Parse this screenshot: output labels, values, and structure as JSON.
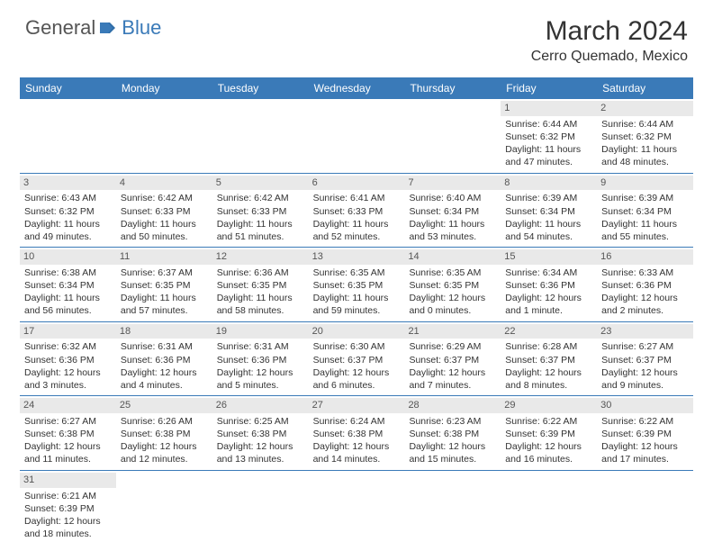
{
  "logo": {
    "text1": "General",
    "text2": "Blue"
  },
  "title": "March 2024",
  "location": "Cerro Quemado, Mexico",
  "colors": {
    "header_bg": "#3a7ab8",
    "header_text": "#ffffff",
    "daynum_bg": "#e9e9e9",
    "border": "#3a7ab8",
    "text": "#333333"
  },
  "dayNames": [
    "Sunday",
    "Monday",
    "Tuesday",
    "Wednesday",
    "Thursday",
    "Friday",
    "Saturday"
  ],
  "weeks": [
    [
      {
        "empty": true
      },
      {
        "empty": true
      },
      {
        "empty": true
      },
      {
        "empty": true
      },
      {
        "empty": true
      },
      {
        "day": "1",
        "sunrise": "Sunrise: 6:44 AM",
        "sunset": "Sunset: 6:32 PM",
        "daylight1": "Daylight: 11 hours",
        "daylight2": "and 47 minutes."
      },
      {
        "day": "2",
        "sunrise": "Sunrise: 6:44 AM",
        "sunset": "Sunset: 6:32 PM",
        "daylight1": "Daylight: 11 hours",
        "daylight2": "and 48 minutes."
      }
    ],
    [
      {
        "day": "3",
        "sunrise": "Sunrise: 6:43 AM",
        "sunset": "Sunset: 6:32 PM",
        "daylight1": "Daylight: 11 hours",
        "daylight2": "and 49 minutes."
      },
      {
        "day": "4",
        "sunrise": "Sunrise: 6:42 AM",
        "sunset": "Sunset: 6:33 PM",
        "daylight1": "Daylight: 11 hours",
        "daylight2": "and 50 minutes."
      },
      {
        "day": "5",
        "sunrise": "Sunrise: 6:42 AM",
        "sunset": "Sunset: 6:33 PM",
        "daylight1": "Daylight: 11 hours",
        "daylight2": "and 51 minutes."
      },
      {
        "day": "6",
        "sunrise": "Sunrise: 6:41 AM",
        "sunset": "Sunset: 6:33 PM",
        "daylight1": "Daylight: 11 hours",
        "daylight2": "and 52 minutes."
      },
      {
        "day": "7",
        "sunrise": "Sunrise: 6:40 AM",
        "sunset": "Sunset: 6:34 PM",
        "daylight1": "Daylight: 11 hours",
        "daylight2": "and 53 minutes."
      },
      {
        "day": "8",
        "sunrise": "Sunrise: 6:39 AM",
        "sunset": "Sunset: 6:34 PM",
        "daylight1": "Daylight: 11 hours",
        "daylight2": "and 54 minutes."
      },
      {
        "day": "9",
        "sunrise": "Sunrise: 6:39 AM",
        "sunset": "Sunset: 6:34 PM",
        "daylight1": "Daylight: 11 hours",
        "daylight2": "and 55 minutes."
      }
    ],
    [
      {
        "day": "10",
        "sunrise": "Sunrise: 6:38 AM",
        "sunset": "Sunset: 6:34 PM",
        "daylight1": "Daylight: 11 hours",
        "daylight2": "and 56 minutes."
      },
      {
        "day": "11",
        "sunrise": "Sunrise: 6:37 AM",
        "sunset": "Sunset: 6:35 PM",
        "daylight1": "Daylight: 11 hours",
        "daylight2": "and 57 minutes."
      },
      {
        "day": "12",
        "sunrise": "Sunrise: 6:36 AM",
        "sunset": "Sunset: 6:35 PM",
        "daylight1": "Daylight: 11 hours",
        "daylight2": "and 58 minutes."
      },
      {
        "day": "13",
        "sunrise": "Sunrise: 6:35 AM",
        "sunset": "Sunset: 6:35 PM",
        "daylight1": "Daylight: 11 hours",
        "daylight2": "and 59 minutes."
      },
      {
        "day": "14",
        "sunrise": "Sunrise: 6:35 AM",
        "sunset": "Sunset: 6:35 PM",
        "daylight1": "Daylight: 12 hours",
        "daylight2": "and 0 minutes."
      },
      {
        "day": "15",
        "sunrise": "Sunrise: 6:34 AM",
        "sunset": "Sunset: 6:36 PM",
        "daylight1": "Daylight: 12 hours",
        "daylight2": "and 1 minute."
      },
      {
        "day": "16",
        "sunrise": "Sunrise: 6:33 AM",
        "sunset": "Sunset: 6:36 PM",
        "daylight1": "Daylight: 12 hours",
        "daylight2": "and 2 minutes."
      }
    ],
    [
      {
        "day": "17",
        "sunrise": "Sunrise: 6:32 AM",
        "sunset": "Sunset: 6:36 PM",
        "daylight1": "Daylight: 12 hours",
        "daylight2": "and 3 minutes."
      },
      {
        "day": "18",
        "sunrise": "Sunrise: 6:31 AM",
        "sunset": "Sunset: 6:36 PM",
        "daylight1": "Daylight: 12 hours",
        "daylight2": "and 4 minutes."
      },
      {
        "day": "19",
        "sunrise": "Sunrise: 6:31 AM",
        "sunset": "Sunset: 6:36 PM",
        "daylight1": "Daylight: 12 hours",
        "daylight2": "and 5 minutes."
      },
      {
        "day": "20",
        "sunrise": "Sunrise: 6:30 AM",
        "sunset": "Sunset: 6:37 PM",
        "daylight1": "Daylight: 12 hours",
        "daylight2": "and 6 minutes."
      },
      {
        "day": "21",
        "sunrise": "Sunrise: 6:29 AM",
        "sunset": "Sunset: 6:37 PM",
        "daylight1": "Daylight: 12 hours",
        "daylight2": "and 7 minutes."
      },
      {
        "day": "22",
        "sunrise": "Sunrise: 6:28 AM",
        "sunset": "Sunset: 6:37 PM",
        "daylight1": "Daylight: 12 hours",
        "daylight2": "and 8 minutes."
      },
      {
        "day": "23",
        "sunrise": "Sunrise: 6:27 AM",
        "sunset": "Sunset: 6:37 PM",
        "daylight1": "Daylight: 12 hours",
        "daylight2": "and 9 minutes."
      }
    ],
    [
      {
        "day": "24",
        "sunrise": "Sunrise: 6:27 AM",
        "sunset": "Sunset: 6:38 PM",
        "daylight1": "Daylight: 12 hours",
        "daylight2": "and 11 minutes."
      },
      {
        "day": "25",
        "sunrise": "Sunrise: 6:26 AM",
        "sunset": "Sunset: 6:38 PM",
        "daylight1": "Daylight: 12 hours",
        "daylight2": "and 12 minutes."
      },
      {
        "day": "26",
        "sunrise": "Sunrise: 6:25 AM",
        "sunset": "Sunset: 6:38 PM",
        "daylight1": "Daylight: 12 hours",
        "daylight2": "and 13 minutes."
      },
      {
        "day": "27",
        "sunrise": "Sunrise: 6:24 AM",
        "sunset": "Sunset: 6:38 PM",
        "daylight1": "Daylight: 12 hours",
        "daylight2": "and 14 minutes."
      },
      {
        "day": "28",
        "sunrise": "Sunrise: 6:23 AM",
        "sunset": "Sunset: 6:38 PM",
        "daylight1": "Daylight: 12 hours",
        "daylight2": "and 15 minutes."
      },
      {
        "day": "29",
        "sunrise": "Sunrise: 6:22 AM",
        "sunset": "Sunset: 6:39 PM",
        "daylight1": "Daylight: 12 hours",
        "daylight2": "and 16 minutes."
      },
      {
        "day": "30",
        "sunrise": "Sunrise: 6:22 AM",
        "sunset": "Sunset: 6:39 PM",
        "daylight1": "Daylight: 12 hours",
        "daylight2": "and 17 minutes."
      }
    ],
    [
      {
        "day": "31",
        "sunrise": "Sunrise: 6:21 AM",
        "sunset": "Sunset: 6:39 PM",
        "daylight1": "Daylight: 12 hours",
        "daylight2": "and 18 minutes."
      },
      {
        "empty": true
      },
      {
        "empty": true
      },
      {
        "empty": true
      },
      {
        "empty": true
      },
      {
        "empty": true
      },
      {
        "empty": true
      }
    ]
  ]
}
